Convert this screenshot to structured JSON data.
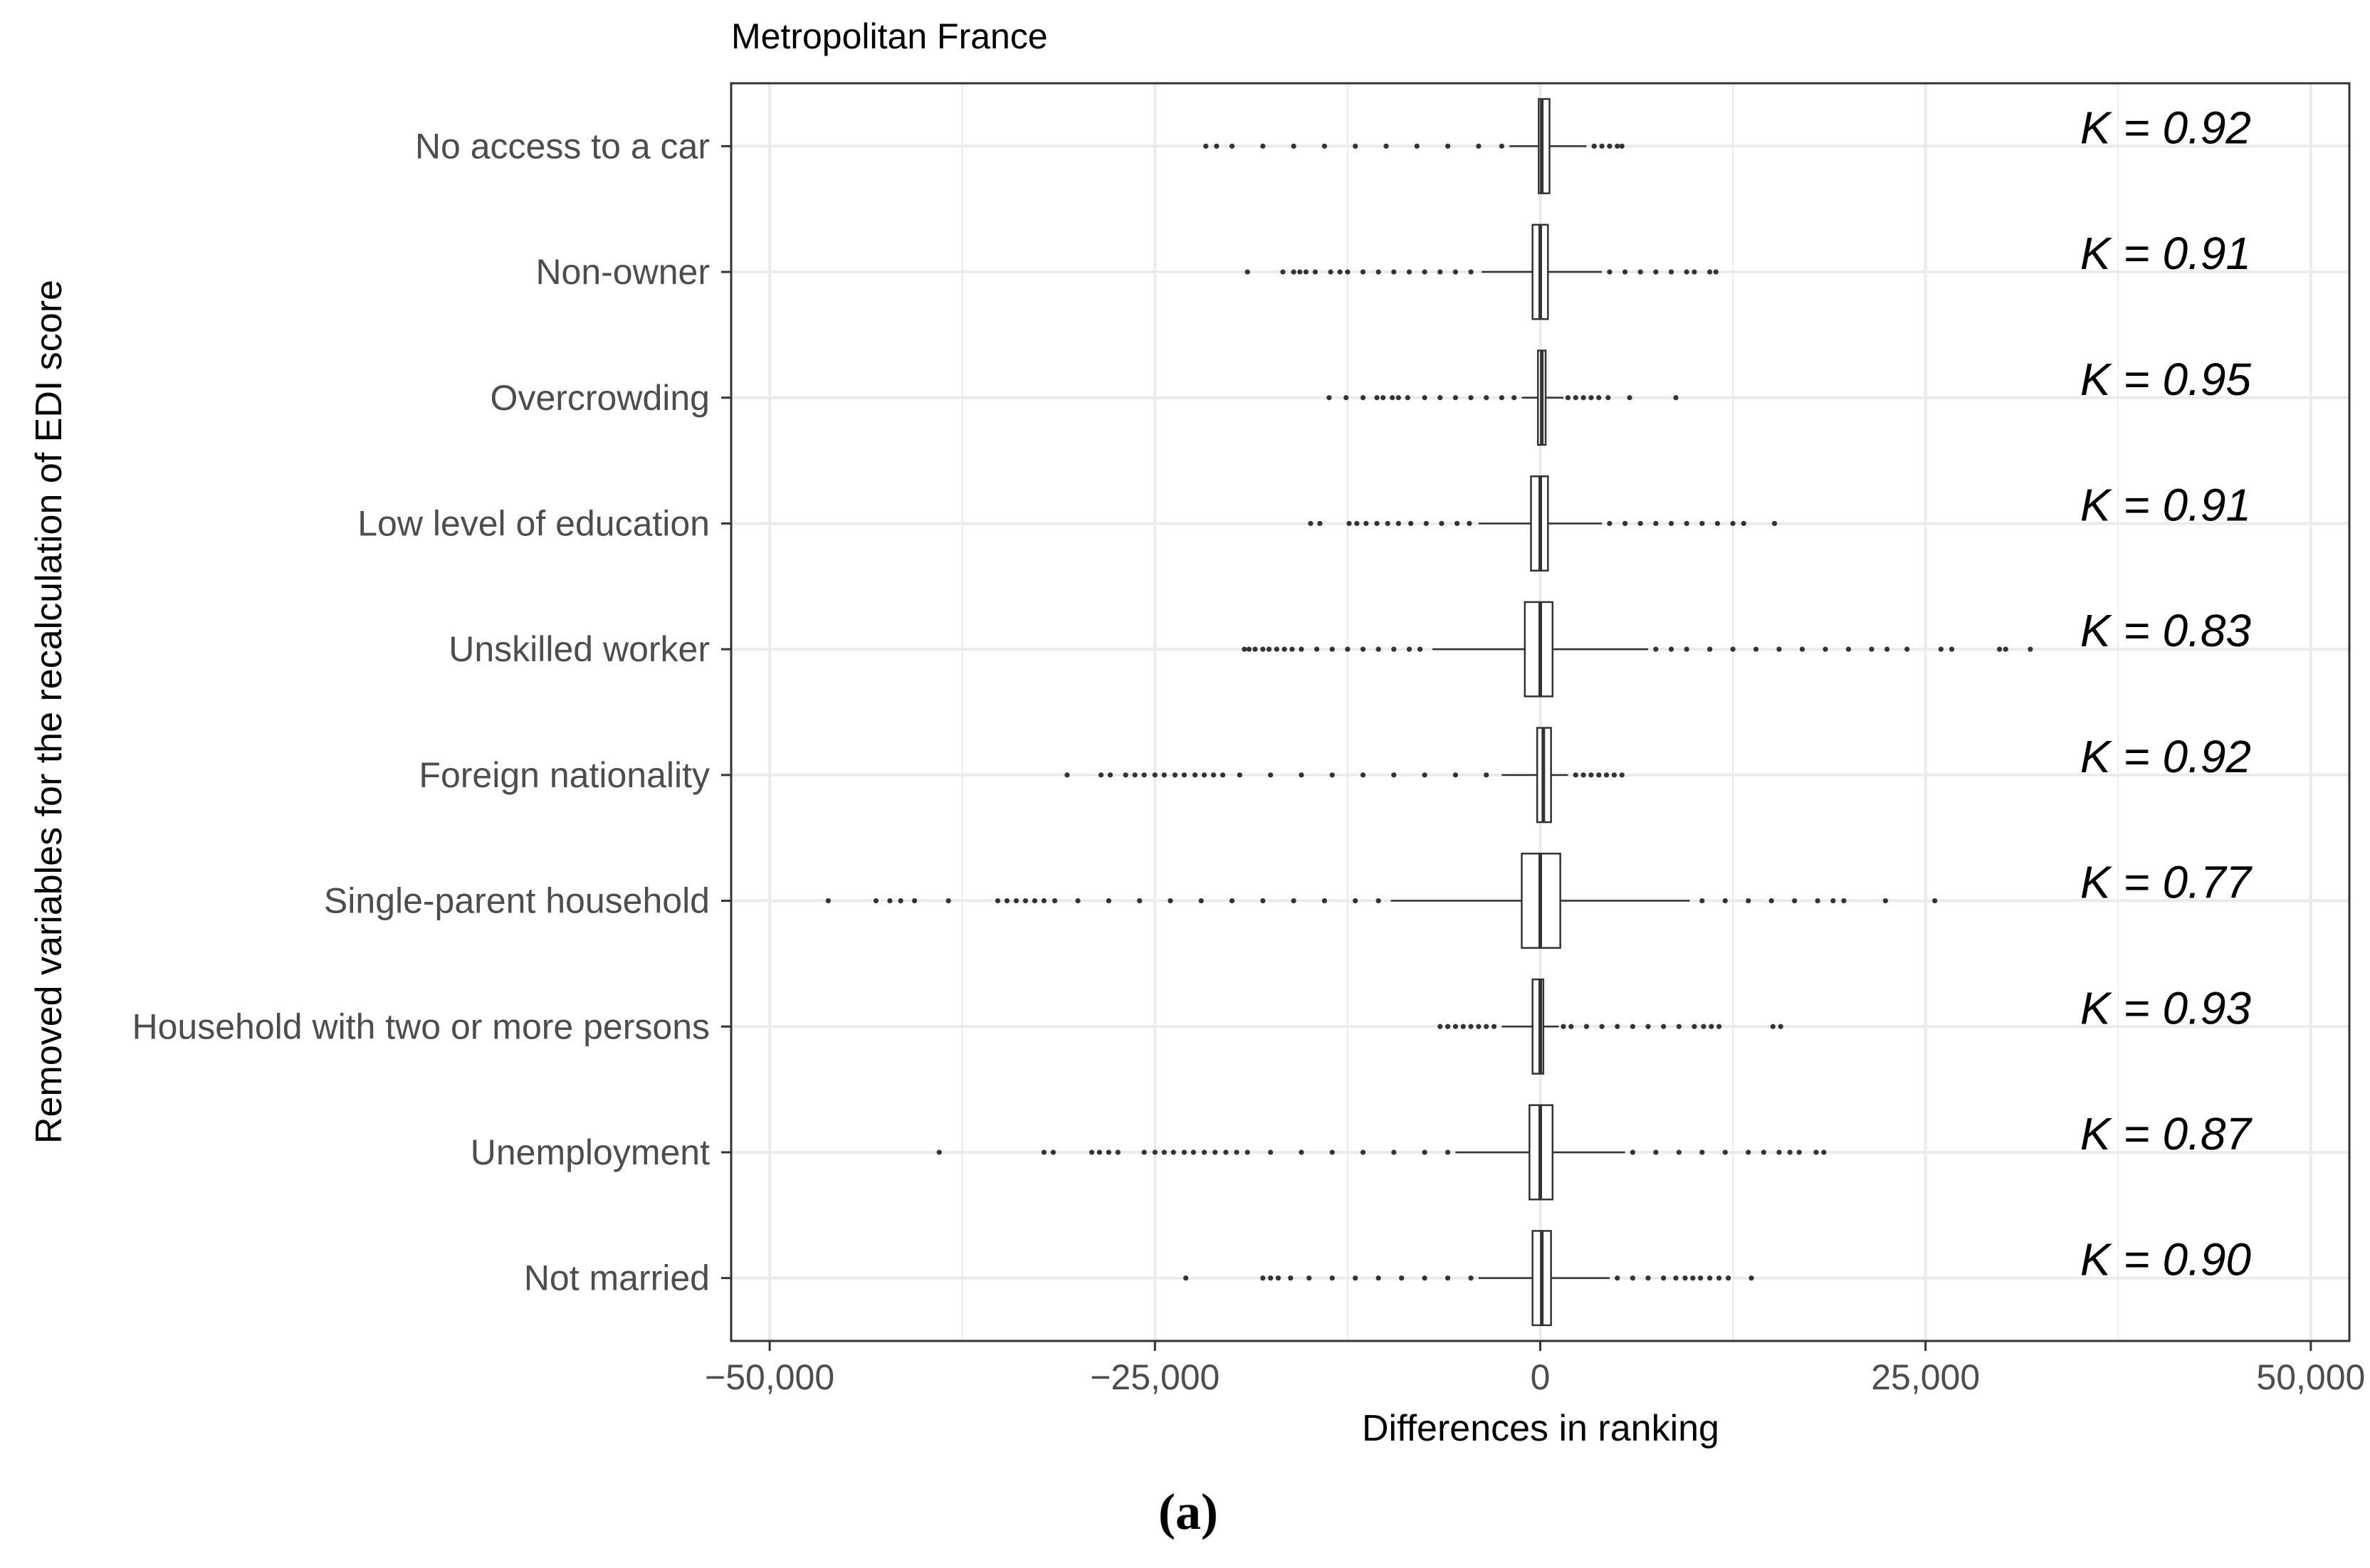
{
  "caption": "(a)",
  "chart_data": {
    "type": "boxplot",
    "orientation": "horizontal",
    "title": "Metropolitan France",
    "xlabel": "Differences in ranking",
    "ylabel": "Removed variables for the recalculation of EDI score",
    "xlim": [
      -52500,
      52500
    ],
    "x_ticks": [
      -50000,
      -25000,
      0,
      25000,
      50000
    ],
    "x_tick_labels": [
      "−50,000",
      "−25,000",
      "0",
      "25,000",
      "50,000"
    ],
    "grid": true,
    "categories": [
      "No access to a car",
      "Non-owner",
      "Overcrowding",
      "Low level of education",
      "Unskilled worker",
      "Foreign nationality",
      "Single-parent household",
      "Household with two or more persons",
      "Unemployment",
      "Not married"
    ],
    "boxes": [
      {
        "min": -2000,
        "q1": -100,
        "median": 100,
        "q3": 600,
        "max": 3000,
        "outliers": [
          -21700,
          -21000,
          -20000,
          -18000,
          -16000,
          -14000,
          -12000,
          -10000,
          -8000,
          -6000,
          -4000,
          -2500,
          3500,
          4000,
          4500,
          5000,
          5300
        ],
        "kappa_label": "K = 0.92"
      },
      {
        "min": -3800,
        "q1": -500,
        "median": 0,
        "q3": 500,
        "max": 4000,
        "outliers": [
          -19000,
          -16700,
          -16000,
          -15600,
          -15200,
          -14600,
          -13600,
          -13000,
          -12500,
          -11500,
          -10500,
          -9500,
          -8500,
          -7500,
          -6500,
          -5500,
          -4500,
          4500,
          5500,
          6500,
          7500,
          8500,
          9500,
          10000,
          11000,
          11400
        ],
        "kappa_label": "K = 0.91"
      },
      {
        "min": -1200,
        "q1": -150,
        "median": 100,
        "q3": 350,
        "max": 1500,
        "outliers": [
          -13700,
          -12600,
          -11500,
          -10600,
          -10200,
          -9600,
          -9200,
          -8600,
          -7500,
          -6500,
          -5500,
          -4500,
          -3500,
          -2500,
          -1700,
          1800,
          2300,
          2800,
          3300,
          3800,
          4400,
          5800,
          8800
        ],
        "kappa_label": "K = 0.95"
      },
      {
        "min": -4000,
        "q1": -600,
        "median": 0,
        "q3": 500,
        "max": 4000,
        "outliers": [
          -14900,
          -14300,
          -12400,
          -11900,
          -11300,
          -10600,
          -9900,
          -9200,
          -8400,
          -7400,
          -6400,
          -5400,
          -4600,
          4500,
          5500,
          6500,
          7500,
          8500,
          9500,
          10500,
          11500,
          12500,
          13200,
          15200
        ],
        "kappa_label": "K = 0.91"
      },
      {
        "min": -7000,
        "q1": -1000,
        "median": 0,
        "q3": 800,
        "max": 7000,
        "outliers": [
          -19200,
          -18900,
          -18500,
          -18000,
          -17600,
          -17100,
          -16600,
          -16100,
          -15500,
          -14500,
          -13500,
          -12500,
          -11500,
          -10500,
          -9500,
          -8500,
          -7800,
          7500,
          8500,
          9500,
          11000,
          12500,
          14000,
          15500,
          17000,
          18500,
          20000,
          21500,
          22500,
          23800,
          26000,
          26700,
          29800,
          30200,
          31800
        ],
        "kappa_label": "K = 0.83"
      },
      {
        "min": -2500,
        "q1": -200,
        "median": 200,
        "q3": 700,
        "max": 1800,
        "outliers": [
          -30700,
          -28500,
          -27900,
          -26900,
          -26300,
          -25700,
          -25000,
          -24400,
          -23700,
          -23100,
          -22400,
          -21800,
          -21200,
          -20600,
          -19500,
          -17500,
          -15500,
          -13500,
          -11500,
          -9500,
          -7500,
          -5500,
          -3500,
          2300,
          2800,
          3300,
          3800,
          4300,
          4800,
          5300
        ],
        "kappa_label": "K = 0.92"
      },
      {
        "min": -9700,
        "q1": -1200,
        "median": 0,
        "q3": 1300,
        "max": 9700,
        "outliers": [
          -46200,
          -43100,
          -42200,
          -41500,
          -40600,
          -38400,
          -35200,
          -34600,
          -34000,
          -33400,
          -32800,
          -32200,
          -31500,
          -30000,
          -28000,
          -26000,
          -24000,
          -22000,
          -20000,
          -18000,
          -16000,
          -14000,
          -12000,
          -10500,
          10500,
          12000,
          13500,
          15000,
          16500,
          18000,
          19000,
          19700,
          22400,
          25600
        ],
        "kappa_label": "K = 0.77"
      },
      {
        "min": -2500,
        "q1": -500,
        "median": 0,
        "q3": 200,
        "max": 1200,
        "outliers": [
          -6500,
          -6000,
          -5500,
          -5000,
          -4500,
          -4000,
          -3500,
          -3000,
          1500,
          2000,
          3000,
          4000,
          5000,
          6000,
          7000,
          8000,
          9000,
          10000,
          10600,
          11100,
          11600,
          15100,
          15600
        ],
        "kappa_label": "K = 0.93"
      },
      {
        "min": -5500,
        "q1": -700,
        "median": 0,
        "q3": 800,
        "max": 5500,
        "outliers": [
          -39000,
          -32200,
          -31600,
          -29100,
          -28600,
          -28000,
          -27400,
          -25700,
          -25000,
          -24400,
          -23800,
          -23100,
          -22500,
          -21800,
          -21100,
          -20400,
          -19700,
          -19000,
          -17500,
          -15500,
          -13500,
          -11500,
          -9500,
          -7500,
          -6000,
          6000,
          7500,
          9000,
          10500,
          12000,
          13500,
          14500,
          15500,
          16200,
          16800,
          17900,
          18400
        ],
        "kappa_label": "K = 0.87"
      },
      {
        "min": -4000,
        "q1": -500,
        "median": 100,
        "q3": 700,
        "max": 4500,
        "outliers": [
          -23000,
          -18000,
          -17500,
          -17000,
          -16200,
          -15000,
          -13500,
          -12000,
          -10500,
          -9000,
          -7500,
          -6000,
          -4500,
          5000,
          6000,
          7000,
          8000,
          8800,
          9400,
          9900,
          10400,
          11000,
          11600,
          12200,
          13700
        ],
        "kappa_label": "K = 0.90"
      }
    ],
    "colors": {
      "box_fill": "#ffffff",
      "box_stroke": "#333333",
      "grid": "#ebebeb",
      "panel_border": "#333333",
      "outlier": "#333333"
    }
  }
}
